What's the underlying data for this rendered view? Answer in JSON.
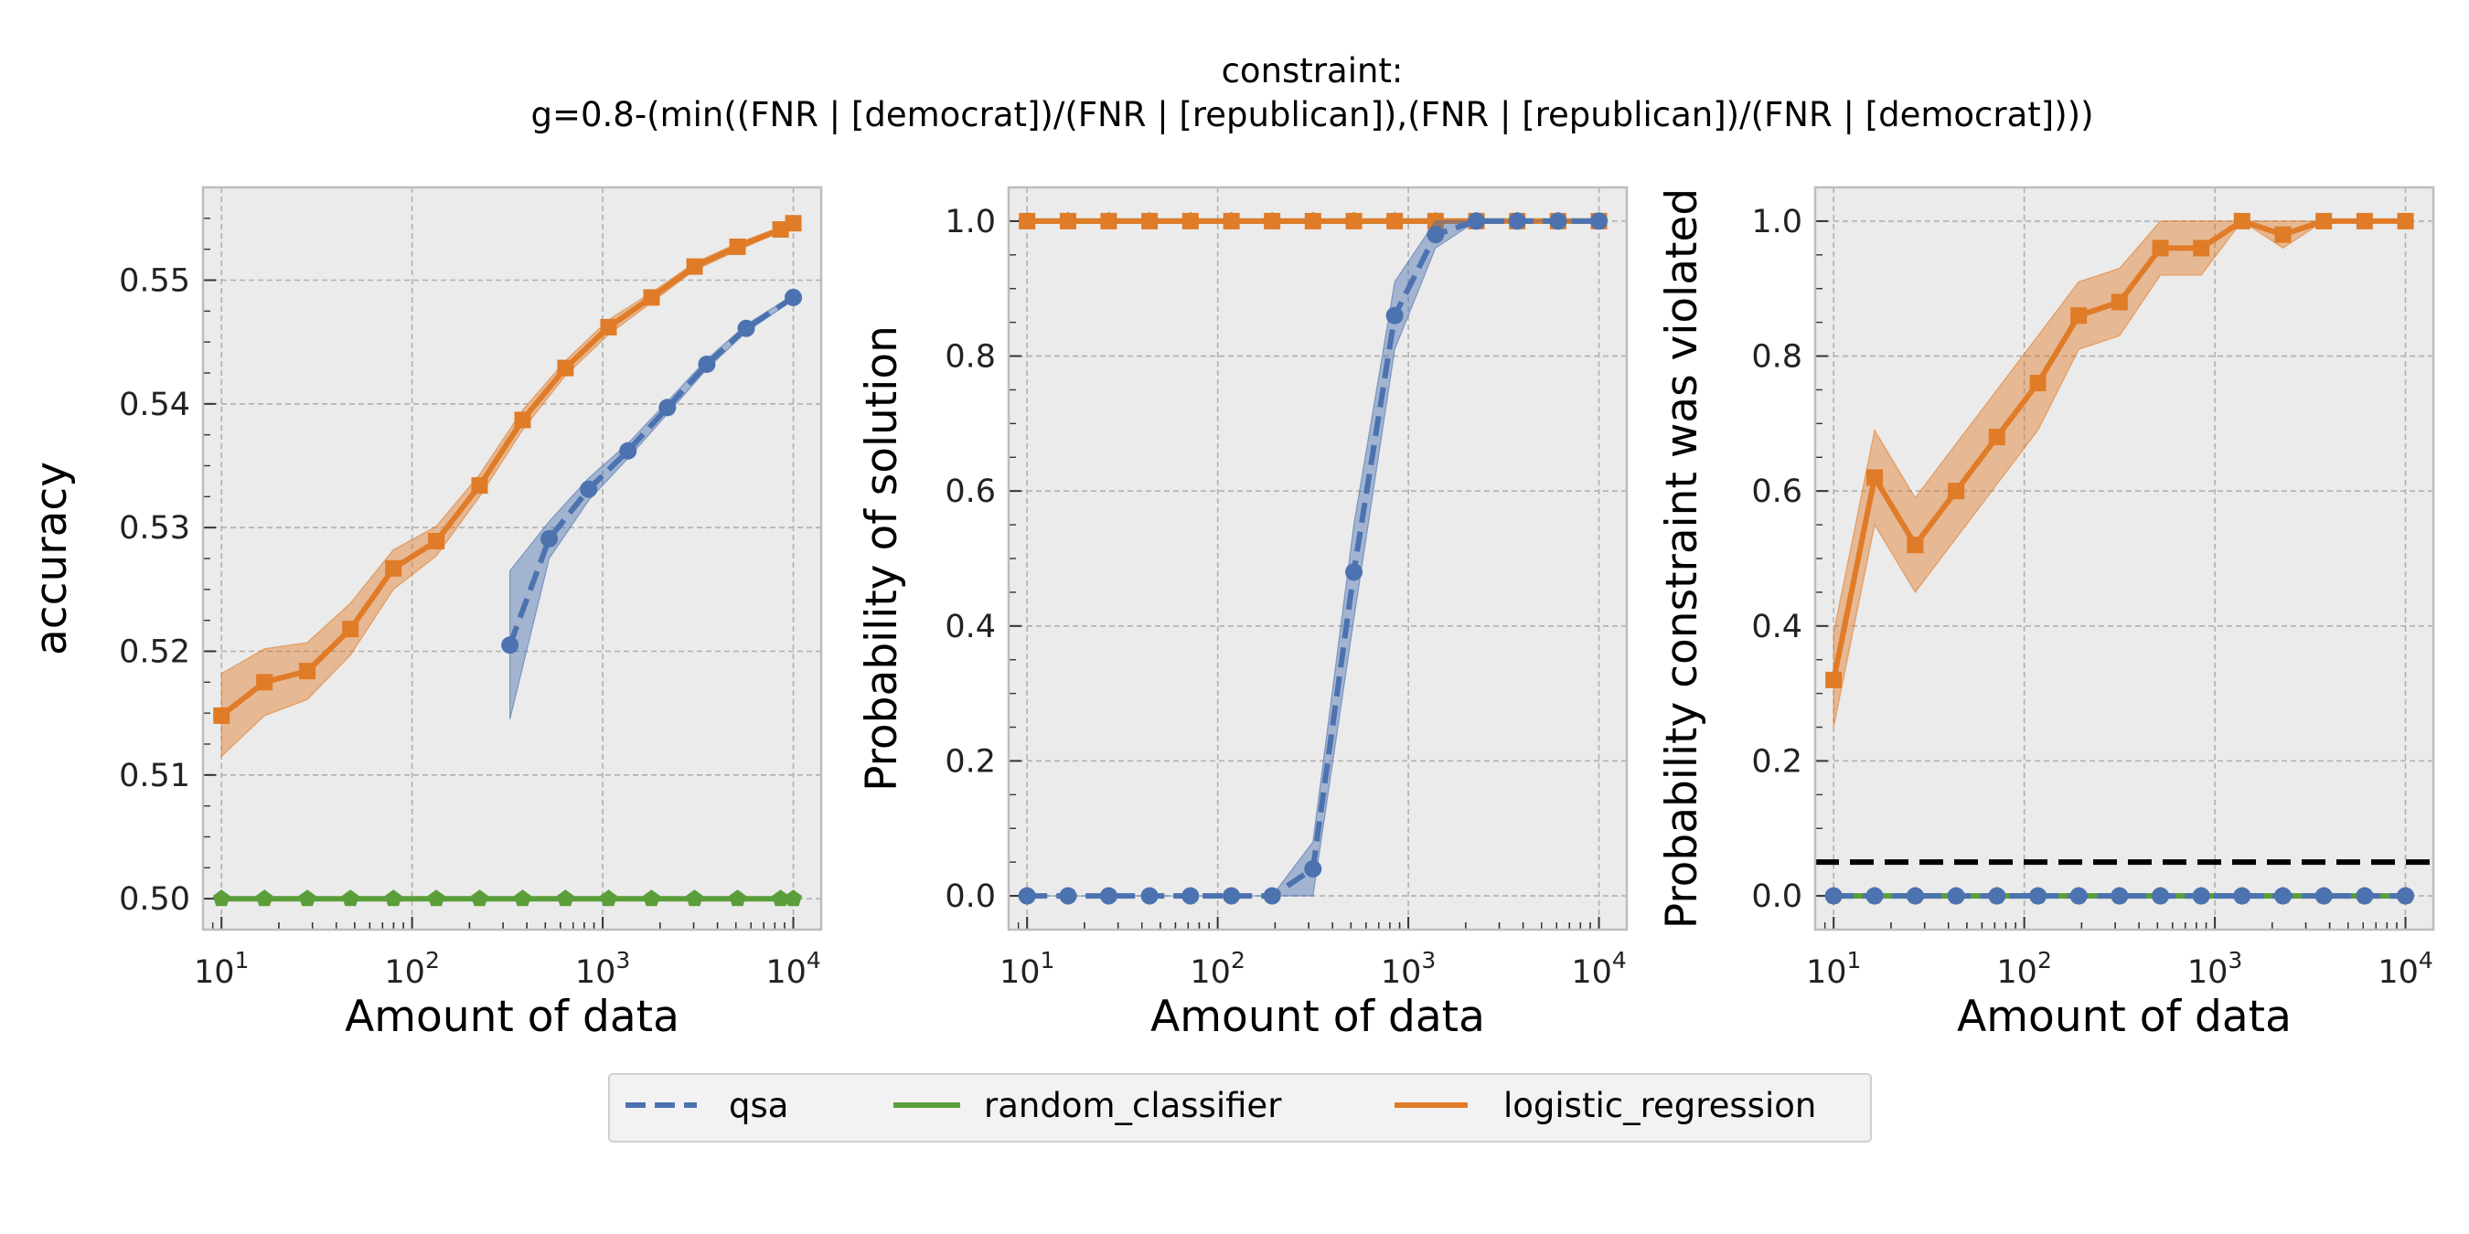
{
  "title_line1": "constraint:",
  "title_line2": "g=0.8-(min((FNR | [democrat])/(FNR | [republican]),(FNR | [republican])/(FNR | [democrat])))",
  "colors": {
    "qsa": "#4c72b0",
    "random_classifier": "#5a9e3a",
    "logistic_regression": "#e07b28",
    "plot_bg": "#ebebeb",
    "grid": "#b0b0b0",
    "threshold": "#000000"
  },
  "legend": [
    {
      "label": "qsa",
      "style": "dashed",
      "color": "#4c72b0"
    },
    {
      "label": "random_classifier",
      "style": "solid",
      "color": "#5a9e3a"
    },
    {
      "label": "logistic_regression",
      "style": "solid",
      "color": "#e07b28"
    }
  ],
  "chart_data": [
    {
      "type": "line",
      "xlabel": "Amount of data",
      "ylabel": "accuracy",
      "xscale": "log",
      "xlim": [
        8,
        14000
      ],
      "ylim": [
        0.4975,
        0.5575
      ],
      "xticks": [
        10,
        100,
        1000,
        10000
      ],
      "yticks": [
        0.5,
        0.51,
        0.52,
        0.53,
        0.54,
        0.55
      ],
      "ytick_labels": [
        "0.50",
        "0.51",
        "0.52",
        "0.53",
        "0.54",
        "0.55"
      ],
      "grid": true,
      "series": [
        {
          "name": "logistic_regression",
          "marker": "square",
          "x": [
            10,
            16.8,
            28.2,
            47.5,
            79.8,
            134,
            226,
            380,
            638,
            1073,
            1804,
            3033,
            5099,
            8573,
            10000
          ],
          "y": [
            0.5148,
            0.5175,
            0.5184,
            0.5218,
            0.5267,
            0.5289,
            0.5334,
            0.5387,
            0.5429,
            0.5462,
            0.5486,
            0.5511,
            0.5527,
            0.5541,
            0.5546
          ],
          "lower": [
            0.5115,
            0.5148,
            0.5161,
            0.5197,
            0.525,
            0.5277,
            0.5325,
            0.5379,
            0.5423,
            0.5456,
            0.5482,
            0.5508,
            0.5524,
            0.5539,
            0.5544
          ],
          "upper": [
            0.5182,
            0.5202,
            0.5207,
            0.5239,
            0.5282,
            0.5301,
            0.5343,
            0.5395,
            0.5435,
            0.5468,
            0.549,
            0.5514,
            0.553,
            0.5543,
            0.5548
          ]
        },
        {
          "name": "qsa",
          "marker": "circle",
          "x": [
            326,
            524,
            844,
            1357,
            2185,
            3517,
            5660,
            10000
          ],
          "y": [
            0.5205,
            0.5291,
            0.5331,
            0.5362,
            0.5397,
            0.5432,
            0.5461,
            0.5486
          ],
          "lower": [
            0.5145,
            0.5275,
            0.5322,
            0.5356,
            0.5392,
            0.5428,
            0.5458,
            0.5484
          ],
          "upper": [
            0.5265,
            0.5305,
            0.534,
            0.5368,
            0.5402,
            0.5436,
            0.5464,
            0.5488
          ]
        },
        {
          "name": "random_classifier",
          "marker": "pentagon",
          "x": [
            10,
            16.8,
            28.2,
            47.5,
            79.8,
            134,
            226,
            380,
            638,
            1073,
            1804,
            3033,
            5099,
            8573,
            10000
          ],
          "y": [
            0.5,
            0.5,
            0.5,
            0.5,
            0.5,
            0.5,
            0.5,
            0.5,
            0.5,
            0.5,
            0.5,
            0.5,
            0.5,
            0.5,
            0.5
          ]
        }
      ]
    },
    {
      "type": "line",
      "xlabel": "Amount of data",
      "ylabel": "Probability of solution",
      "xscale": "log",
      "xlim": [
        8,
        14000
      ],
      "ylim": [
        -0.05,
        1.05
      ],
      "xticks": [
        10,
        100,
        1000,
        10000
      ],
      "yticks": [
        0,
        0.2,
        0.4,
        0.6,
        0.8,
        1.0
      ],
      "ytick_labels": [
        "0.0",
        "0.2",
        "0.4",
        "0.6",
        "0.8",
        "1.0"
      ],
      "grid": true,
      "series": [
        {
          "name": "random_classifier",
          "marker": "pentagon",
          "x": [
            10,
            16.4,
            26.8,
            43.9,
            71.9,
            118,
            193,
            316,
            518,
            848,
            1389,
            2275,
            3728,
            6105,
            10000
          ],
          "y": [
            1,
            1,
            1,
            1,
            1,
            1,
            1,
            1,
            1,
            1,
            1,
            1,
            1,
            1,
            1
          ]
        },
        {
          "name": "logistic_regression",
          "marker": "square",
          "x": [
            10,
            16.4,
            26.8,
            43.9,
            71.9,
            118,
            193,
            316,
            518,
            848,
            1389,
            2275,
            3728,
            6105,
            10000
          ],
          "y": [
            1,
            1,
            1,
            1,
            1,
            1,
            1,
            1,
            1,
            1,
            1,
            1,
            1,
            1,
            1
          ]
        },
        {
          "name": "qsa",
          "marker": "circle",
          "x": [
            10,
            16.4,
            26.8,
            43.9,
            71.9,
            118,
            193,
            316,
            518,
            848,
            1389,
            2275,
            3728,
            6105,
            10000
          ],
          "y": [
            0,
            0,
            0,
            0,
            0,
            0,
            0,
            0.04,
            0.48,
            0.86,
            0.98,
            1,
            1,
            1,
            1
          ],
          "lower": [
            0,
            0,
            0,
            0,
            0,
            0,
            0,
            0.0,
            0.41,
            0.81,
            0.96,
            1,
            1,
            1,
            1
          ],
          "upper": [
            0,
            0,
            0,
            0,
            0,
            0,
            0,
            0.08,
            0.55,
            0.91,
            1.0,
            1,
            1,
            1,
            1
          ]
        }
      ]
    },
    {
      "type": "line",
      "xlabel": "Amount of data",
      "ylabel": "Probability constraint was violated",
      "xscale": "log",
      "xlim": [
        8,
        14000
      ],
      "ylim": [
        -0.05,
        1.05
      ],
      "xticks": [
        10,
        100,
        1000,
        10000
      ],
      "yticks": [
        0,
        0.2,
        0.4,
        0.6,
        0.8,
        1.0
      ],
      "ytick_labels": [
        "0.0",
        "0.2",
        "0.4",
        "0.6",
        "0.8",
        "1.0"
      ],
      "grid": true,
      "threshold": 0.05,
      "series": [
        {
          "name": "logistic_regression",
          "marker": "square",
          "x": [
            10,
            16.4,
            26.8,
            43.9,
            71.9,
            118,
            193,
            316,
            518,
            848,
            1389,
            2275,
            3728,
            6105,
            10000
          ],
          "y": [
            0.32,
            0.62,
            0.52,
            0.6,
            0.68,
            0.76,
            0.86,
            0.88,
            0.96,
            0.96,
            1.0,
            0.98,
            1.0,
            1.0,
            1.0
          ],
          "lower": [
            0.25,
            0.55,
            0.45,
            0.53,
            0.61,
            0.69,
            0.81,
            0.83,
            0.92,
            0.92,
            1.0,
            0.96,
            1.0,
            1.0,
            1.0
          ],
          "upper": [
            0.39,
            0.69,
            0.59,
            0.67,
            0.75,
            0.83,
            0.91,
            0.93,
            1.0,
            1.0,
            1.0,
            1.0,
            1.0,
            1.0,
            1.0
          ]
        },
        {
          "name": "random_classifier",
          "marker": "pentagon",
          "x": [
            10,
            16.4,
            26.8,
            43.9,
            71.9,
            118,
            193,
            316,
            518,
            848,
            1389,
            2275,
            3728,
            6105,
            10000
          ],
          "y": [
            0,
            0,
            0,
            0,
            0,
            0,
            0,
            0,
            0,
            0,
            0,
            0,
            0,
            0,
            0
          ]
        },
        {
          "name": "qsa",
          "marker": "circle",
          "x": [
            10,
            16.4,
            26.8,
            43.9,
            71.9,
            118,
            193,
            316,
            518,
            848,
            1389,
            2275,
            3728,
            6105,
            10000
          ],
          "y": [
            0,
            0,
            0,
            0,
            0,
            0,
            0,
            0,
            0,
            0,
            0,
            0,
            0,
            0,
            0
          ]
        }
      ]
    }
  ]
}
